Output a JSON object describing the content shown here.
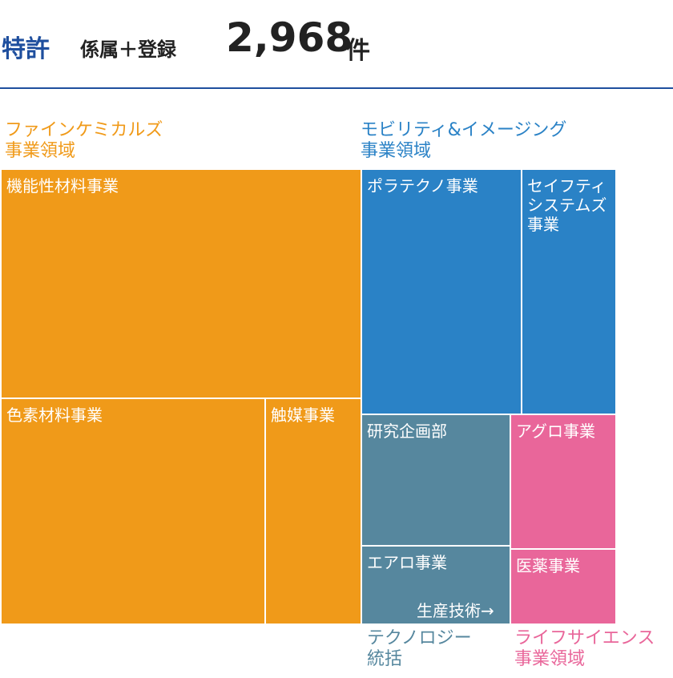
{
  "header": {
    "prefix": "特許",
    "subtitle": "係属＋登録",
    "value": "2,968",
    "unit": "件"
  },
  "colors": {
    "fine_chemicals": "#f09a19",
    "mobility_imaging": "#2a82c6",
    "technology": "#56879e",
    "life_science": "#e9669a",
    "header_blue": "#1f4f9e"
  },
  "chart_data": {
    "type": "treemap",
    "groups": [
      {
        "label": "ファインケミカルズ\n事業領域",
        "color": "#f09a19",
        "cells": [
          {
            "label": "機能性材料事業"
          },
          {
            "label": "色素材料事業"
          },
          {
            "label": "触媒事業"
          }
        ]
      },
      {
        "label": "モビリティ&イメージング\n事業領域",
        "color": "#2a82c6",
        "cells": [
          {
            "label": "ポラテクノ事業"
          },
          {
            "label": "セイフティ\nシステムズ\n事業"
          }
        ]
      },
      {
        "label": "テクノロジー\n統括",
        "color": "#56879e",
        "cells": [
          {
            "label": "研究企画部"
          },
          {
            "label": "エアロ事業"
          },
          {
            "label": "生産技術→"
          }
        ]
      },
      {
        "label": "ライフサイエンス\n事業領域",
        "color": "#e9669a",
        "cells": [
          {
            "label": "アグロ事業"
          },
          {
            "label": "医薬事業"
          }
        ]
      }
    ]
  }
}
